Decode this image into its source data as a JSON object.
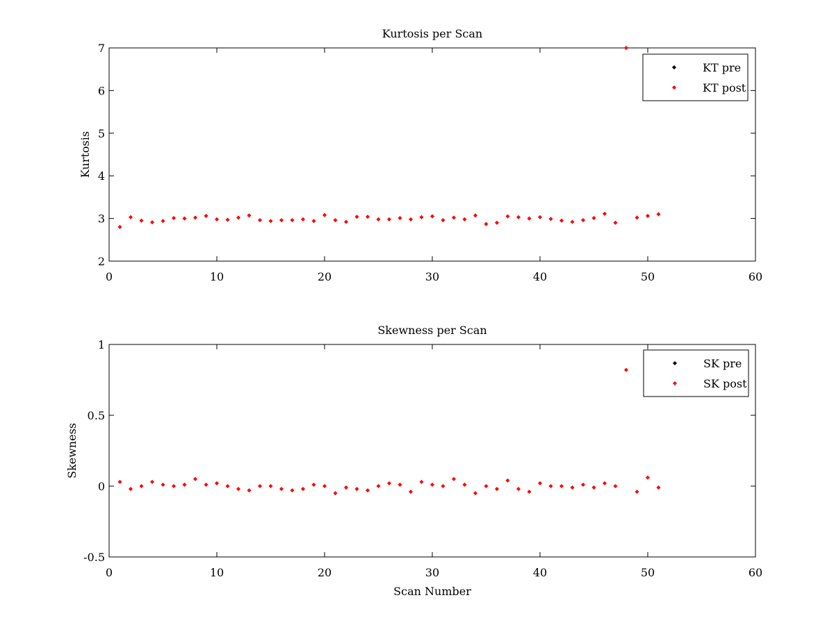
{
  "chart_data": [
    {
      "type": "scatter",
      "title": "Kurtosis per Scan",
      "xlabel": "",
      "ylabel": "Kurtosis",
      "xlim": [
        0,
        60
      ],
      "ylim": [
        2,
        7
      ],
      "xticks": [
        0,
        10,
        20,
        30,
        40,
        50,
        60
      ],
      "yticks": [
        2,
        3,
        4,
        5,
        6,
        7
      ],
      "grid": false,
      "legend_position": "top-right",
      "series": [
        {
          "name": "KT pre",
          "color": "#000000",
          "x": [],
          "y": []
        },
        {
          "name": "KT post",
          "color": "#ff0000",
          "x": [
            1,
            2,
            3,
            4,
            5,
            6,
            7,
            8,
            9,
            10,
            11,
            12,
            13,
            14,
            15,
            16,
            17,
            18,
            19,
            20,
            21,
            22,
            23,
            24,
            25,
            26,
            27,
            28,
            29,
            30,
            31,
            32,
            33,
            34,
            35,
            36,
            37,
            38,
            39,
            40,
            41,
            42,
            43,
            44,
            45,
            46,
            47,
            48,
            49,
            50,
            51
          ],
          "y": [
            2.8,
            3.03,
            2.95,
            2.91,
            2.94,
            3.01,
            3.0,
            3.02,
            3.06,
            2.98,
            2.97,
            3.02,
            3.07,
            2.96,
            2.94,
            2.96,
            2.96,
            2.98,
            2.94,
            3.08,
            2.96,
            2.92,
            3.04,
            3.04,
            2.98,
            2.98,
            3.01,
            2.98,
            3.03,
            3.05,
            2.96,
            3.02,
            2.98,
            3.07,
            2.87,
            2.9,
            3.05,
            3.03,
            3.0,
            3.03,
            2.99,
            2.95,
            2.92,
            2.96,
            3.01,
            3.11,
            2.9,
            7.0,
            3.02,
            3.06,
            3.1
          ]
        }
      ]
    },
    {
      "type": "scatter",
      "title": "Skewness per Scan",
      "xlabel": "Scan Number",
      "ylabel": "Skewness",
      "xlim": [
        0,
        60
      ],
      "ylim": [
        -0.5,
        1
      ],
      "xticks": [
        0,
        10,
        20,
        30,
        40,
        50,
        60
      ],
      "yticks": [
        -0.5,
        0,
        0.5,
        1
      ],
      "ytick_labels": [
        "-0.5",
        "0",
        "0.5",
        "1"
      ],
      "grid": false,
      "legend_position": "top-right",
      "series": [
        {
          "name": "SK pre",
          "color": "#000000",
          "x": [],
          "y": []
        },
        {
          "name": "SK post",
          "color": "#ff0000",
          "x": [
            1,
            2,
            3,
            4,
            5,
            6,
            7,
            8,
            9,
            10,
            11,
            12,
            13,
            14,
            15,
            16,
            17,
            18,
            19,
            20,
            21,
            22,
            23,
            24,
            25,
            26,
            27,
            28,
            29,
            30,
            31,
            32,
            33,
            34,
            35,
            36,
            37,
            38,
            39,
            40,
            41,
            42,
            43,
            44,
            45,
            46,
            47,
            48,
            49,
            50,
            51
          ],
          "y": [
            0.03,
            -0.02,
            0.0,
            0.03,
            0.01,
            0.0,
            0.01,
            0.05,
            0.01,
            0.02,
            0.0,
            -0.02,
            -0.03,
            0.0,
            0.0,
            -0.02,
            -0.03,
            -0.02,
            0.01,
            0.0,
            -0.05,
            -0.01,
            -0.02,
            -0.03,
            0.0,
            0.02,
            0.01,
            -0.04,
            0.03,
            0.01,
            0.0,
            0.05,
            0.01,
            -0.05,
            0.0,
            -0.02,
            0.04,
            -0.02,
            -0.04,
            0.02,
            0.0,
            0.0,
            -0.01,
            0.01,
            -0.01,
            0.02,
            0.0,
            0.82,
            -0.04,
            0.06,
            -0.01
          ]
        }
      ]
    }
  ]
}
